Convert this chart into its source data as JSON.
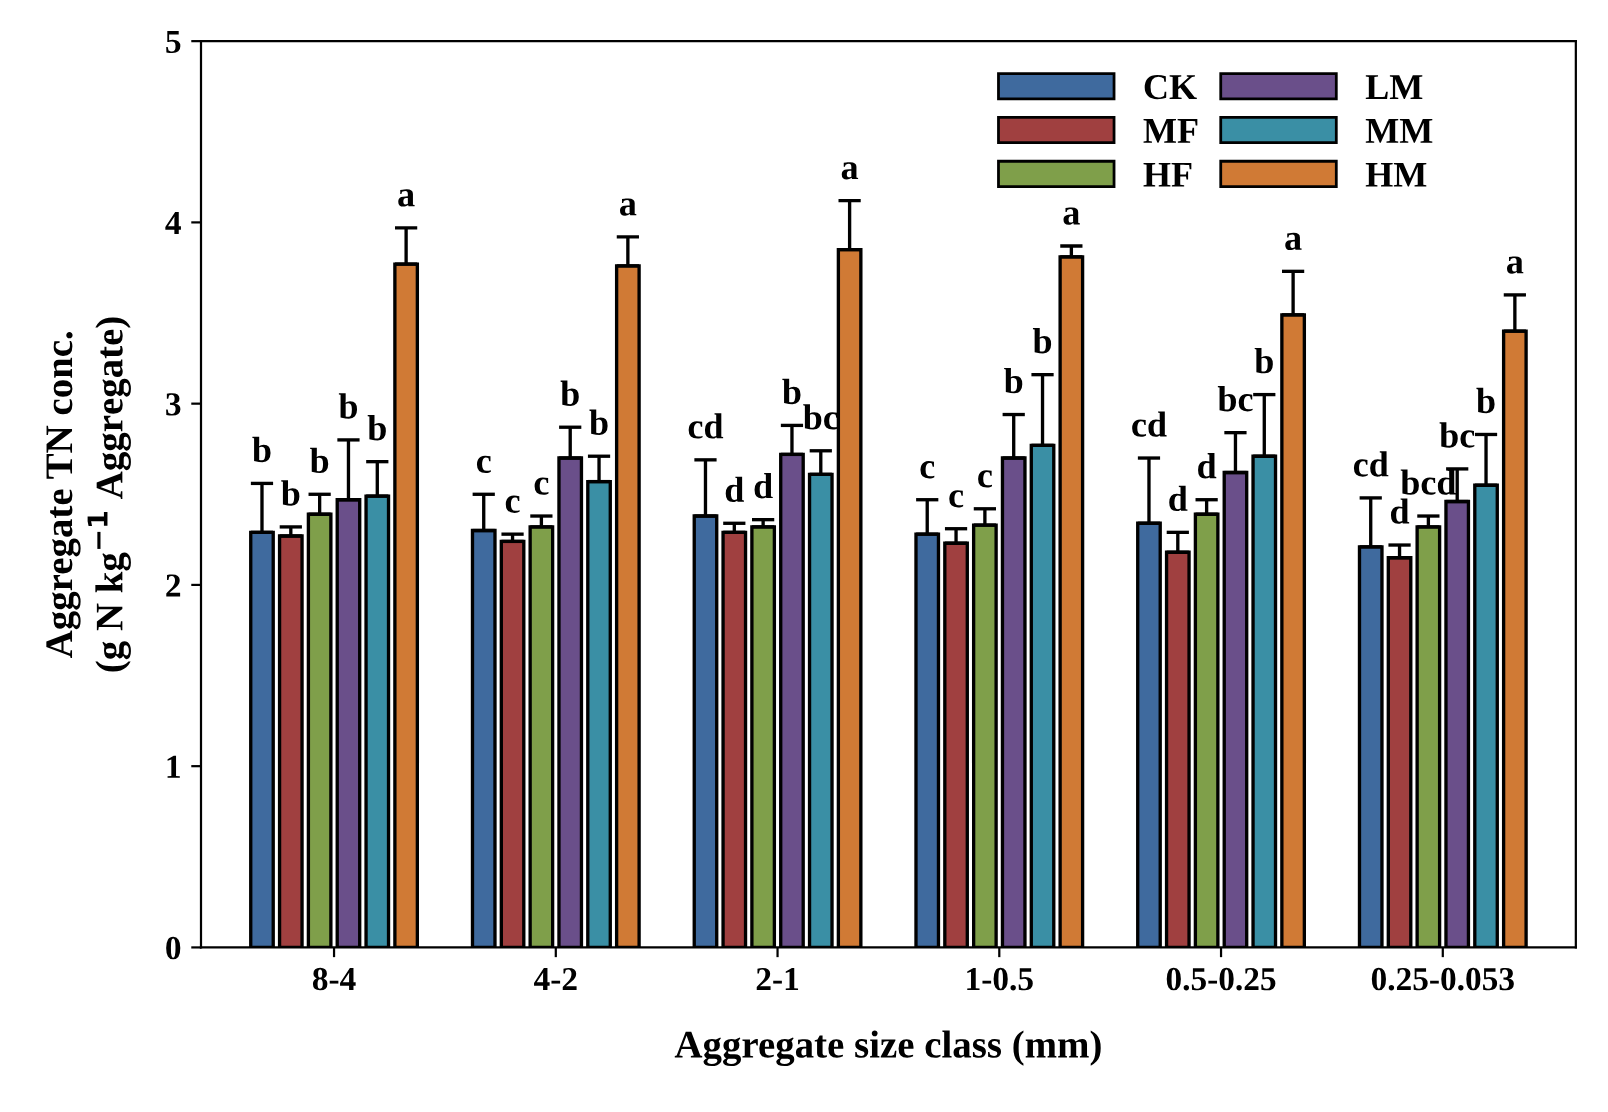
{
  "chart_data": {
    "type": "bar",
    "xlabel": "Aggregate size class (mm)",
    "ylabel": "Aggregate TN conc.\n(g N kg$^{−1}$ Aggregate)",
    "categories": [
      "8-4",
      "4-2",
      "2-1",
      "1-0.5",
      "0.5-0.25",
      "0.25-0.053"
    ],
    "ylim": [
      0,
      5
    ],
    "yticks": [
      0,
      1,
      2,
      3,
      4,
      5
    ],
    "legend": "top right",
    "grid": false,
    "series": [
      {
        "name": "CK",
        "color": "#3f6a9e",
        "values": [
          2.29,
          2.3,
          2.38,
          2.28,
          2.34,
          2.21
        ],
        "errors": [
          [
            2.29,
            2.56
          ],
          [
            2.3,
            2.5
          ],
          [
            2.38,
            2.69
          ],
          [
            2.28,
            2.47
          ],
          [
            2.34,
            2.7
          ],
          [
            2.21,
            2.48
          ]
        ]
      },
      {
        "name": "MF",
        "color": "#a04040",
        "values": [
          2.27,
          2.24,
          2.29,
          2.23,
          2.18,
          2.15
        ],
        "errors": [
          [
            2.27,
            2.32
          ],
          [
            2.24,
            2.28
          ],
          [
            2.29,
            2.34
          ],
          [
            2.23,
            2.31
          ],
          [
            2.18,
            2.29
          ],
          [
            2.15,
            2.22
          ]
        ]
      },
      {
        "name": "HF",
        "color": "#7f9f4a",
        "values": [
          2.39,
          2.32,
          2.32,
          2.33,
          2.39,
          2.32
        ],
        "errors": [
          [
            2.39,
            2.5
          ],
          [
            2.32,
            2.38
          ],
          [
            2.32,
            2.36
          ],
          [
            2.33,
            2.42
          ],
          [
            2.39,
            2.47
          ],
          [
            2.32,
            2.38
          ]
        ]
      },
      {
        "name": "LM",
        "color": "#6a4f8a",
        "values": [
          2.47,
          2.7,
          2.72,
          2.7,
          2.62,
          2.46
        ],
        "errors": [
          [
            2.47,
            2.8
          ],
          [
            2.7,
            2.87
          ],
          [
            2.72,
            2.88
          ],
          [
            2.7,
            2.94
          ],
          [
            2.62,
            2.84
          ],
          [
            2.46,
            2.64
          ]
        ]
      },
      {
        "name": "MM",
        "color": "#3a8fa5",
        "values": [
          2.49,
          2.57,
          2.61,
          2.77,
          2.71,
          2.55
        ],
        "errors": [
          [
            2.49,
            2.68
          ],
          [
            2.57,
            2.71
          ],
          [
            2.61,
            2.74
          ],
          [
            2.77,
            3.16
          ],
          [
            2.71,
            3.05
          ],
          [
            2.55,
            2.83
          ]
        ]
      },
      {
        "name": "HM",
        "color": "#d07a35",
        "values": [
          3.77,
          3.76,
          3.85,
          3.81,
          3.49,
          3.4
        ],
        "errors": [
          [
            3.77,
            3.97
          ],
          [
            3.76,
            3.92
          ],
          [
            3.85,
            4.12
          ],
          [
            3.81,
            3.87
          ],
          [
            3.49,
            3.73
          ],
          [
            3.4,
            3.6
          ]
        ]
      }
    ],
    "annotations": [
      "b",
      "b",
      "b",
      "b",
      "b",
      "a",
      "c",
      "c",
      "c",
      "b",
      "b",
      "a",
      "cd",
      "d",
      "d",
      "b",
      "bc",
      "a",
      "c",
      "c",
      "c",
      "b",
      "b",
      "a",
      "cd",
      "d",
      "d",
      "bc",
      "b",
      "a",
      "cd",
      "d",
      "bcd",
      "bc",
      "b",
      "a"
    ]
  }
}
